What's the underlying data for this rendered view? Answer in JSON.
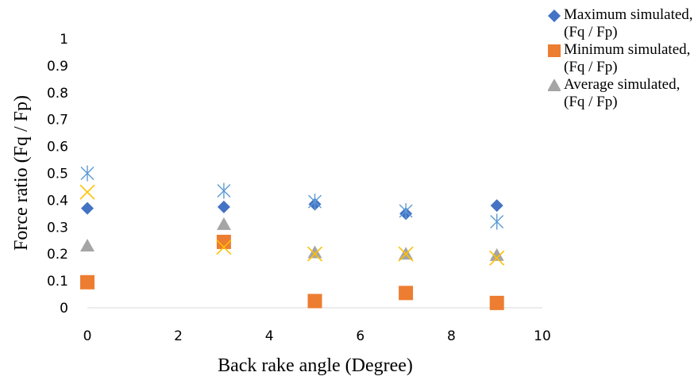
{
  "chart_data": {
    "type": "scatter",
    "xlabel": "Back rake angle (Degree)",
    "ylabel": "Force  ratio  (Fq / Fp)",
    "xlim": [
      0,
      10
    ],
    "ylim": [
      0,
      1
    ],
    "x_ticks": [
      "0",
      "2",
      "4",
      "6",
      "8",
      "10"
    ],
    "y_ticks": [
      "0",
      "0.1",
      "0.2",
      "0.3",
      "0.4",
      "0.5",
      "0.6",
      "0.7",
      "0.8",
      "0.9",
      "1"
    ],
    "legend_position": "right",
    "series": [
      {
        "name": "Maximum simulated, (Fq / Fp)",
        "marker": "diamond",
        "color": "#4472C4",
        "x": [
          0,
          3,
          5,
          7,
          9
        ],
        "y": [
          0.37,
          0.375,
          0.385,
          0.35,
          0.38
        ]
      },
      {
        "name": "Minimum simulated, (Fq / Fp)",
        "marker": "square",
        "color": "#ED7D31",
        "x": [
          0,
          3,
          5,
          7,
          9
        ],
        "y": [
          0.095,
          0.245,
          0.025,
          0.055,
          0.018
        ]
      },
      {
        "name": "Average simulated, (Fq / Fp)",
        "marker": "triangle",
        "color": "#A5A5A5",
        "x": [
          0,
          3,
          5,
          7,
          9
        ],
        "y": [
          0.23,
          0.31,
          0.205,
          0.2,
          0.195
        ]
      },
      {
        "marker": "x",
        "color": "#FFC000",
        "x": [
          0,
          3,
          5,
          7,
          9
        ],
        "y": [
          0.43,
          0.225,
          0.2,
          0.2,
          0.185
        ]
      },
      {
        "marker": "asterisk",
        "color": "#5B9BD5",
        "x": [
          0,
          3,
          5,
          7,
          9
        ],
        "y": [
          0.5,
          0.435,
          0.395,
          0.36,
          0.32
        ]
      }
    ]
  }
}
